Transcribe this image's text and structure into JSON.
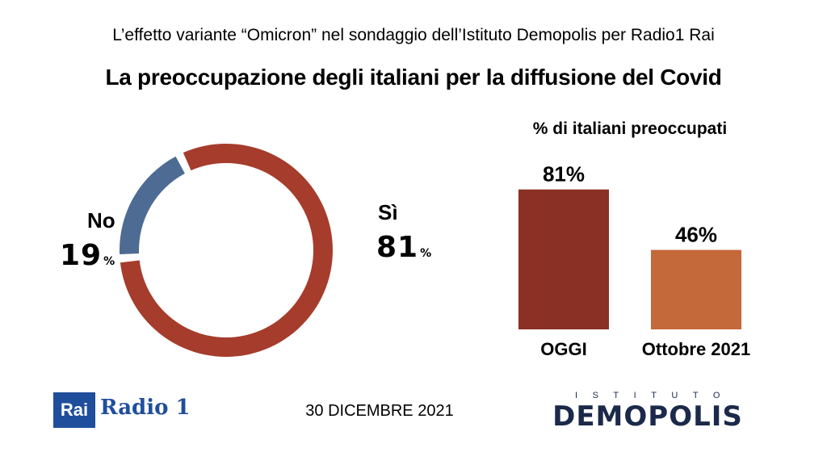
{
  "header": {
    "supertitle": "L’effetto variante “Omicron” nel sondaggio dell’Istituto Demopolis per Radio1 Rai",
    "title": "La preoccupazione degli italiani per la diffusione del Covid"
  },
  "chart_data": [
    {
      "type": "pie",
      "slices": [
        {
          "label": "Sì",
          "value": 81,
          "display": "81",
          "unit": "%",
          "color": "#a63c2c"
        },
        {
          "label": "No",
          "value": 19,
          "display": "19",
          "unit": "%",
          "color": "#4e6b93"
        }
      ]
    },
    {
      "type": "bar",
      "title": "% di italiani preoccupati",
      "categories": [
        "OGGI",
        "Ottobre 2021"
      ],
      "values": [
        81,
        46
      ],
      "value_labels": [
        "81%",
        "46%"
      ],
      "colors": [
        "#8b3024",
        "#c4693a"
      ],
      "ylim": [
        0,
        100
      ]
    }
  ],
  "footer": {
    "rai_logo": "Rai",
    "radio_logo": "Radio 1",
    "date": "30 DICEMBRE 2021",
    "demopolis_top": "ISTITUTO",
    "demopolis_main": "DEMOPOLIS"
  }
}
